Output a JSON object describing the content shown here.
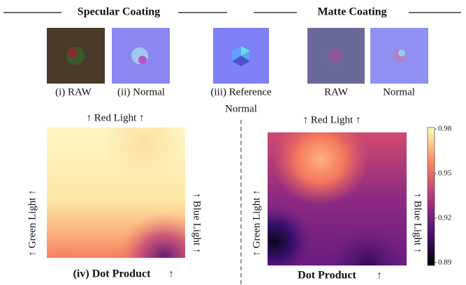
{
  "header": {
    "specular": "Specular Coating",
    "matte": "Matte Coating"
  },
  "captions": {
    "raw": "(i) RAW",
    "normal": "(ii) Normal",
    "reference": [
      "(iii) Reference",
      "Normal"
    ],
    "matte_raw": "RAW",
    "matte_normal": "Normal"
  },
  "left_panel": {
    "top": "↑ Red Light ↑",
    "left": "↑ Green Light ↑",
    "right": "↑ Blue Light ↑",
    "caption": "(iv) Dot Product",
    "arrow": "↑"
  },
  "right_panel": {
    "top": "↑ Red Light ↑",
    "left": "↑ Green Light ↑",
    "right": "↑ Blue Light ↑",
    "caption": "Dot Product",
    "arrow": "↑"
  },
  "colorbar": {
    "lim": [
      0.888,
      0.981
    ],
    "ticks": [
      0.98,
      0.95,
      0.92,
      0.89
    ]
  }
}
